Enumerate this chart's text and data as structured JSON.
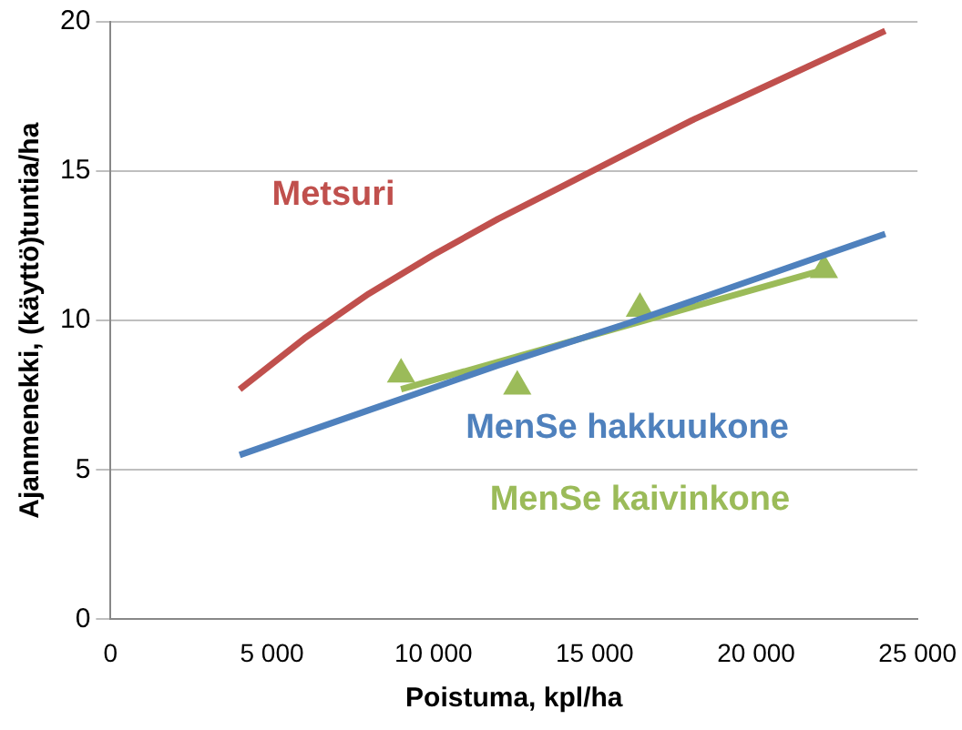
{
  "chart_data": {
    "type": "line",
    "xlabel": "Poistuma, kpl/ha",
    "ylabel": "Ajanmenekki, (käyttö)tuntia/ha",
    "xlim": [
      0,
      25000
    ],
    "xticks": [
      {
        "value": 0,
        "label": "0"
      },
      {
        "value": 5000,
        "label": "5 000"
      },
      {
        "value": 10000,
        "label": "10 000"
      },
      {
        "value": 15000,
        "label": "15 000"
      },
      {
        "value": 20000,
        "label": "20 000"
      },
      {
        "value": 25000,
        "label": "25 000"
      }
    ],
    "ylim": [
      0,
      20
    ],
    "yticks": [
      0,
      5,
      10,
      15,
      20
    ],
    "grid": "y",
    "legend": false,
    "marker": "none",
    "series": [
      {
        "name": "Metsuri",
        "color": "#c0504d",
        "x": [
          4000,
          6000,
          8000,
          10000,
          12000,
          14000,
          16000,
          18000,
          20000,
          22000,
          24000
        ],
        "values": [
          7.7,
          9.4,
          10.9,
          12.2,
          13.4,
          14.5,
          15.6,
          16.7,
          17.7,
          18.7,
          19.7
        ]
      },
      {
        "name": "MenSe hakkuukone",
        "color": "#4f81bd",
        "x": [
          4000,
          8000,
          12000,
          16000,
          20000,
          24000
        ],
        "values": [
          5.5,
          7.0,
          8.5,
          9.9,
          11.4,
          12.9
        ]
      },
      {
        "name": "MenSe kaivinkone",
        "type": "scatter",
        "marker": "triangle",
        "color": "#9bbb59",
        "x": [
          9000,
          12600,
          16400,
          22100
        ],
        "values": [
          8.2,
          7.8,
          10.4,
          11.7
        ]
      },
      {
        "type": "line",
        "color": "#9bbb59",
        "x": [
          9000,
          22100
        ],
        "values": [
          7.7,
          11.7
        ]
      }
    ]
  }
}
